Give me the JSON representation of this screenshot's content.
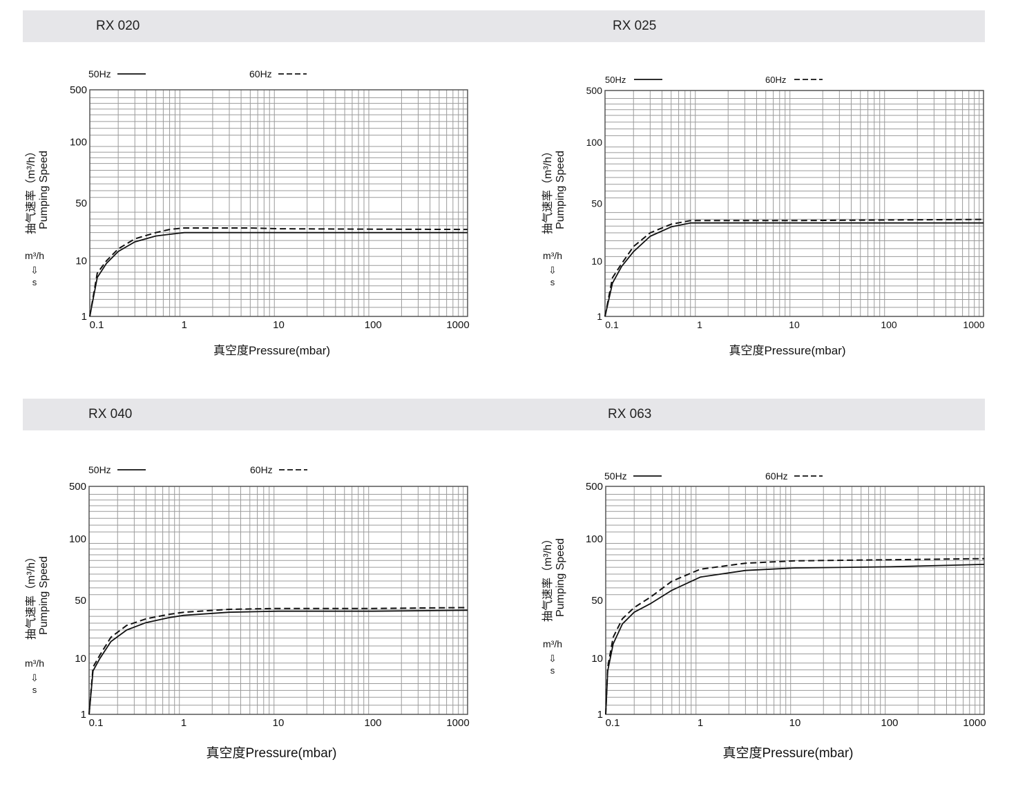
{
  "charts": [
    {
      "model": "RX 020",
      "legend": [
        {
          "label": "50Hz",
          "style": "solid"
        },
        {
          "label": "60Hz",
          "style": "dashed"
        }
      ],
      "ylabel_cn": "抽气速率（m³/h）",
      "ylabel_en": "Pumping Speed",
      "unit_top": "m³/h",
      "unit_arrow": "⇩",
      "unit_bottom": "s",
      "xlabel": "真空度Pressure(mbar)",
      "yticks": [
        1,
        10,
        50,
        100,
        500
      ],
      "xticks": [
        0.1,
        1,
        10,
        100,
        1000
      ]
    },
    {
      "model": "RX 025",
      "legend": [
        {
          "label": "50Hz",
          "style": "solid"
        },
        {
          "label": "60Hz",
          "style": "dashed"
        }
      ],
      "ylabel_cn": "抽气速率（m³/h）",
      "ylabel_en": "Pumping Speed",
      "unit_top": "m³/h",
      "unit_arrow": "⇩",
      "unit_bottom": "s",
      "xlabel": "真空度Pressure(mbar)",
      "yticks": [
        1,
        10,
        50,
        100,
        500
      ],
      "xticks": [
        0.1,
        1,
        10,
        100,
        1000
      ]
    },
    {
      "model": "RX 040",
      "legend": [
        {
          "label": "50Hz",
          "style": "solid"
        },
        {
          "label": "60Hz",
          "style": "dashed"
        }
      ],
      "ylabel_cn": "抽气速率（m³/h）",
      "ylabel_en": "Pumping Speed",
      "unit_top": "m³/h",
      "unit_arrow": "⇩",
      "unit_bottom": "s",
      "xlabel": "真空度Pressure(mbar)",
      "yticks": [
        1,
        10,
        50,
        100,
        500
      ],
      "xticks": [
        0.1,
        1,
        10,
        100,
        1000
      ]
    },
    {
      "model": "RX 063",
      "legend": [
        {
          "label": "50Hz",
          "style": "solid"
        },
        {
          "label": "60Hz",
          "style": "dashed"
        }
      ],
      "ylabel_cn": "抽气速率（m³/h）",
      "ylabel_en": "Pumping Speed",
      "unit_top": "m³/h",
      "unit_arrow": "⇩",
      "unit_bottom": "s",
      "xlabel": "真空度Pressure(mbar)",
      "yticks": [
        1,
        10,
        50,
        100,
        500
      ],
      "xticks": [
        0.1,
        1,
        10,
        100,
        1000
      ]
    }
  ],
  "chart_data": [
    {
      "type": "line",
      "title": "RX 020",
      "xlabel": "真空度Pressure(mbar)",
      "ylabel": "抽气速率（m³/h） Pumping Speed",
      "xscale": "log",
      "xlim": [
        0.1,
        1000
      ],
      "ylim": [
        1,
        500
      ],
      "grid": true,
      "legend_position": "top",
      "series": [
        {
          "name": "50Hz",
          "style": "solid",
          "x": [
            0.1,
            0.12,
            0.15,
            0.2,
            0.3,
            0.5,
            0.7,
            1,
            2,
            5,
            10,
            100,
            1000
          ],
          "y": [
            1,
            5,
            9,
            13,
            17,
            20,
            21,
            22,
            22,
            22,
            22,
            22,
            22
          ]
        },
        {
          "name": "60Hz",
          "style": "dashed",
          "x": [
            0.1,
            0.12,
            0.15,
            0.2,
            0.3,
            0.5,
            0.7,
            1,
            2,
            5,
            10,
            100,
            1000
          ],
          "y": [
            1,
            6,
            10,
            14,
            18.5,
            22,
            24,
            25,
            25,
            25,
            24.5,
            24.2,
            24
          ]
        }
      ]
    },
    {
      "type": "line",
      "title": "RX 025",
      "xlabel": "真空度Pressure(mbar)",
      "ylabel": "抽气速率（m³/h） Pumping Speed",
      "xscale": "log",
      "xlim": [
        0.1,
        1000
      ],
      "ylim": [
        1,
        500
      ],
      "grid": true,
      "legend_position": "top",
      "series": [
        {
          "name": "50Hz",
          "style": "solid",
          "x": [
            0.1,
            0.12,
            0.15,
            0.2,
            0.3,
            0.5,
            0.8,
            1,
            10,
            100,
            1000
          ],
          "y": [
            1,
            4,
            8,
            13,
            20,
            26,
            29,
            29,
            29,
            29,
            29
          ]
        },
        {
          "name": "60Hz",
          "style": "dashed",
          "x": [
            0.1,
            0.12,
            0.15,
            0.2,
            0.3,
            0.5,
            0.8,
            1,
            10,
            100,
            1000
          ],
          "y": [
            1,
            5,
            9,
            15,
            22,
            28,
            31,
            31,
            31,
            31.5,
            32
          ]
        }
      ]
    },
    {
      "type": "line",
      "title": "RX 040",
      "xlabel": "真空度Pressure(mbar)",
      "ylabel": "抽气速率（m³/h） Pumping Speed",
      "xscale": "log",
      "xlim": [
        0.1,
        1000
      ],
      "ylim": [
        1,
        500
      ],
      "grid": true,
      "legend_position": "top",
      "series": [
        {
          "name": "50Hz",
          "style": "solid",
          "x": [
            0.1,
            0.11,
            0.13,
            0.17,
            0.25,
            0.4,
            0.7,
            1,
            3,
            10,
            100,
            1000
          ],
          "y": [
            1,
            6,
            10,
            16,
            22,
            27,
            31,
            33,
            36,
            37,
            37,
            38
          ]
        },
        {
          "name": "60Hz",
          "style": "dashed",
          "x": [
            0.1,
            0.11,
            0.13,
            0.17,
            0.25,
            0.4,
            0.7,
            1,
            3,
            10,
            100,
            1000
          ],
          "y": [
            1,
            7,
            11,
            18,
            25,
            30,
            34,
            36,
            39,
            40,
            40,
            41
          ]
        }
      ]
    },
    {
      "type": "line",
      "title": "RX 063",
      "xlabel": "真空度Pressure(mbar)",
      "ylabel": "抽气速率（m³/h） Pumping Speed",
      "xscale": "log",
      "xlim": [
        0.1,
        1000
      ],
      "ylim": [
        1,
        500
      ],
      "grid": true,
      "legend_position": "top",
      "series": [
        {
          "name": "50Hz",
          "style": "solid",
          "x": [
            0.1,
            0.105,
            0.12,
            0.15,
            0.2,
            0.3,
            0.5,
            1,
            3,
            10,
            100,
            1000
          ],
          "y": [
            1,
            6,
            15,
            26,
            36,
            46,
            56,
            65,
            70,
            72,
            73,
            75
          ]
        },
        {
          "name": "60Hz",
          "style": "dashed",
          "x": [
            0.1,
            0.105,
            0.12,
            0.15,
            0.2,
            0.3,
            0.5,
            1,
            3,
            10,
            100,
            1000
          ],
          "y": [
            1,
            7,
            18,
            30,
            41,
            52,
            62,
            71,
            76,
            78,
            79,
            80
          ]
        }
      ]
    }
  ]
}
